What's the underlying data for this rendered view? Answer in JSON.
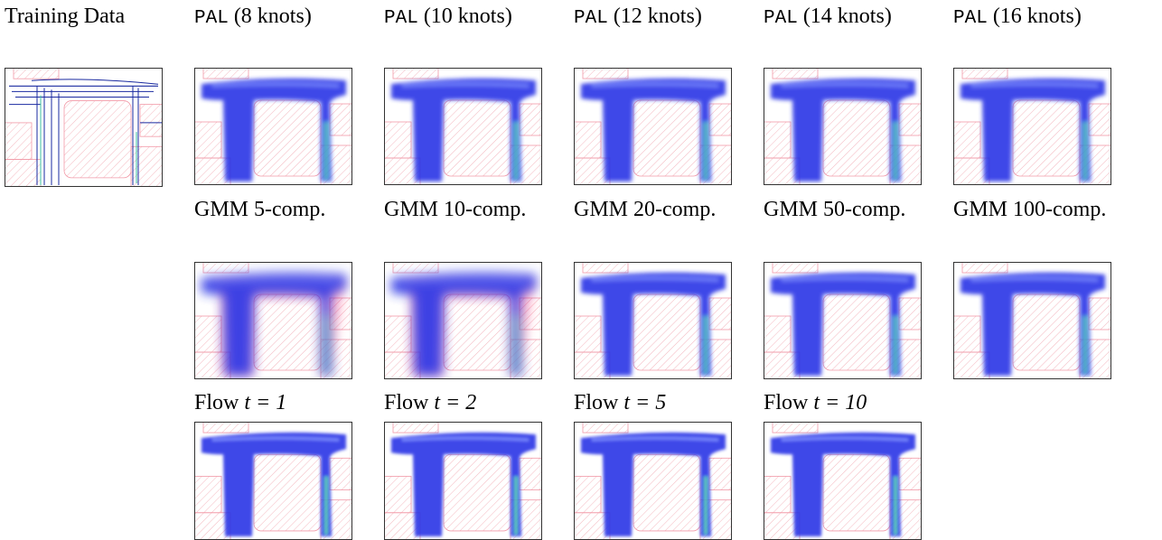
{
  "training": {
    "caption": "Training Data"
  },
  "rows": [
    {
      "panels": [
        {
          "method": "PAL",
          "detail": "(8 knots)"
        },
        {
          "method": "PAL",
          "detail": "(10 knots)"
        },
        {
          "method": "PAL",
          "detail": "(12 knots)"
        },
        {
          "method": "PAL",
          "detail": "(14 knots)"
        },
        {
          "method": "PAL",
          "detail": "(16 knots)"
        }
      ]
    },
    {
      "panels": [
        {
          "method": "GMM",
          "detail": "5-comp."
        },
        {
          "method": "GMM",
          "detail": "10-comp."
        },
        {
          "method": "GMM",
          "detail": "20-comp."
        },
        {
          "method": "GMM",
          "detail": "50-comp."
        },
        {
          "method": "GMM",
          "detail": "100-comp."
        }
      ]
    },
    {
      "panels": [
        {
          "method": "Flow",
          "math": "t = 1"
        },
        {
          "method": "Flow",
          "math": "t = 2"
        },
        {
          "method": "Flow",
          "math": "t = 5"
        },
        {
          "method": "Flow",
          "math": "t = 10"
        }
      ]
    }
  ]
}
